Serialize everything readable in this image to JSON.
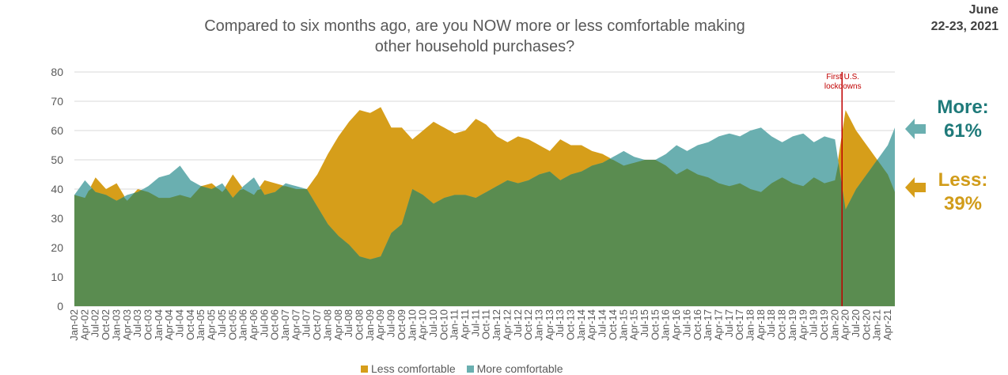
{
  "header": {
    "title_line1": "Compared to six months ago, are you NOW more or less comfortable making",
    "title_line2": "other household purchases?",
    "date_line1": "June",
    "date_line2": "22-23, 2021"
  },
  "callouts": {
    "more_label": "More:",
    "more_value": "61%",
    "less_label": "Less:",
    "less_value": "39%"
  },
  "colors": {
    "less": "#d69e1a",
    "more": "#6aafb0",
    "base": "#5a8c50",
    "event_line": "#c00000",
    "more_text": "#1f7a7a",
    "less_text": "#d19c1a"
  },
  "chart_data": {
    "type": "area",
    "title": "Compared to six months ago, are you NOW more or less comfortable making other household purchases?",
    "ylim": [
      0,
      80
    ],
    "yticks": [
      0,
      10,
      20,
      30,
      40,
      50,
      60,
      70,
      80
    ],
    "grid": true,
    "legend_position": "bottom",
    "x_tick_labels": [
      "Jan-02",
      "Apr-02",
      "Jul-02",
      "Oct-02",
      "Jan-03",
      "Apr-03",
      "Jul-03",
      "Oct-03",
      "Jan-04",
      "Apr-04",
      "Jul-04",
      "Oct-04",
      "Jan-05",
      "Apr-05",
      "Jul-05",
      "Oct-05",
      "Jan-06",
      "Apr-06",
      "Jul-06",
      "Oct-06",
      "Jan-07",
      "Apr-07",
      "Jul-07",
      "Oct-07",
      "Jan-08",
      "Apr-08",
      "Jul-08",
      "Oct-08",
      "Jan-09",
      "Apr-09",
      "Jul-09",
      "Oct-09",
      "Jan-10",
      "Apr-10",
      "Jul-10",
      "Oct-10",
      "Jan-11",
      "Apr-11",
      "Jul-11",
      "Oct-11",
      "Jan-12",
      "Apr-12",
      "Jul-12",
      "Oct-12",
      "Jan-13",
      "Apr-13",
      "Jul-13",
      "Oct-13",
      "Jan-14",
      "Apr-14",
      "Jul-14",
      "Oct-14",
      "Jan-15",
      "Apr-15",
      "Jul-15",
      "Oct-15",
      "Jan-16",
      "Apr-16",
      "Jul-16",
      "Oct-16",
      "Jan-17",
      "Apr-17",
      "Jul-17",
      "Oct-17",
      "Jan-18",
      "Apr-18",
      "Jul-18",
      "Oct-18",
      "Jan-19",
      "Apr-19",
      "Jul-19",
      "Oct-19",
      "Jan-20",
      "Apr-20",
      "Jul-20",
      "Oct-20",
      "Jan-21",
      "Apr-21"
    ],
    "x_range": [
      "2002-01",
      "2021-06"
    ],
    "annotation": {
      "text_line1": "First U.S.",
      "text_line2": "lockdowns",
      "x": "2020-03"
    },
    "series": [
      {
        "name": "Less comfortable",
        "points": [
          [
            "2002-01",
            38
          ],
          [
            "2002-04",
            37
          ],
          [
            "2002-07",
            44
          ],
          [
            "2002-10",
            40
          ],
          [
            "2003-01",
            42
          ],
          [
            "2003-04",
            36
          ],
          [
            "2003-07",
            40
          ],
          [
            "2003-10",
            39
          ],
          [
            "2004-01",
            37
          ],
          [
            "2004-04",
            37
          ],
          [
            "2004-07",
            38
          ],
          [
            "2004-10",
            37
          ],
          [
            "2005-01",
            41
          ],
          [
            "2005-04",
            42
          ],
          [
            "2005-07",
            39
          ],
          [
            "2005-10",
            45
          ],
          [
            "2006-01",
            40
          ],
          [
            "2006-04",
            38
          ],
          [
            "2006-07",
            43
          ],
          [
            "2006-10",
            42
          ],
          [
            "2007-01",
            41
          ],
          [
            "2007-04",
            40
          ],
          [
            "2007-07",
            40
          ],
          [
            "2007-10",
            45
          ],
          [
            "2008-01",
            52
          ],
          [
            "2008-04",
            58
          ],
          [
            "2008-07",
            63
          ],
          [
            "2008-10",
            67
          ],
          [
            "2009-01",
            66
          ],
          [
            "2009-04",
            68
          ],
          [
            "2009-07",
            61
          ],
          [
            "2009-10",
            61
          ],
          [
            "2010-01",
            57
          ],
          [
            "2010-04",
            60
          ],
          [
            "2010-07",
            63
          ],
          [
            "2010-10",
            61
          ],
          [
            "2011-01",
            59
          ],
          [
            "2011-04",
            60
          ],
          [
            "2011-07",
            64
          ],
          [
            "2011-10",
            62
          ],
          [
            "2012-01",
            58
          ],
          [
            "2012-04",
            56
          ],
          [
            "2012-07",
            58
          ],
          [
            "2012-10",
            57
          ],
          [
            "2013-01",
            55
          ],
          [
            "2013-04",
            53
          ],
          [
            "2013-07",
            57
          ],
          [
            "2013-10",
            55
          ],
          [
            "2014-01",
            55
          ],
          [
            "2014-04",
            53
          ],
          [
            "2014-07",
            52
          ],
          [
            "2014-10",
            50
          ],
          [
            "2015-01",
            48
          ],
          [
            "2015-04",
            49
          ],
          [
            "2015-07",
            50
          ],
          [
            "2015-10",
            50
          ],
          [
            "2016-01",
            48
          ],
          [
            "2016-04",
            45
          ],
          [
            "2016-07",
            47
          ],
          [
            "2016-10",
            45
          ],
          [
            "2017-01",
            44
          ],
          [
            "2017-04",
            42
          ],
          [
            "2017-07",
            41
          ],
          [
            "2017-10",
            42
          ],
          [
            "2018-01",
            40
          ],
          [
            "2018-04",
            39
          ],
          [
            "2018-07",
            42
          ],
          [
            "2018-10",
            44
          ],
          [
            "2019-01",
            42
          ],
          [
            "2019-04",
            41
          ],
          [
            "2019-07",
            44
          ],
          [
            "2019-10",
            42
          ],
          [
            "2020-01",
            43
          ],
          [
            "2020-04",
            67
          ],
          [
            "2020-07",
            60
          ],
          [
            "2020-10",
            55
          ],
          [
            "2021-01",
            50
          ],
          [
            "2021-04",
            45
          ],
          [
            "2021-06",
            39
          ]
        ]
      },
      {
        "name": "More comfortable",
        "points": [
          [
            "2002-01",
            38
          ],
          [
            "2002-04",
            43
          ],
          [
            "2002-07",
            39
          ],
          [
            "2002-10",
            38
          ],
          [
            "2003-01",
            36
          ],
          [
            "2003-04",
            38
          ],
          [
            "2003-07",
            39
          ],
          [
            "2003-10",
            41
          ],
          [
            "2004-01",
            44
          ],
          [
            "2004-04",
            45
          ],
          [
            "2004-07",
            48
          ],
          [
            "2004-10",
            43
          ],
          [
            "2005-01",
            41
          ],
          [
            "2005-04",
            40
          ],
          [
            "2005-07",
            42
          ],
          [
            "2005-10",
            37
          ],
          [
            "2006-01",
            41
          ],
          [
            "2006-04",
            44
          ],
          [
            "2006-07",
            38
          ],
          [
            "2006-10",
            39
          ],
          [
            "2007-01",
            42
          ],
          [
            "2007-04",
            41
          ],
          [
            "2007-07",
            40
          ],
          [
            "2007-10",
            34
          ],
          [
            "2008-01",
            28
          ],
          [
            "2008-04",
            24
          ],
          [
            "2008-07",
            21
          ],
          [
            "2008-10",
            17
          ],
          [
            "2009-01",
            16
          ],
          [
            "2009-04",
            17
          ],
          [
            "2009-07",
            25
          ],
          [
            "2009-10",
            28
          ],
          [
            "2010-01",
            40
          ],
          [
            "2010-04",
            38
          ],
          [
            "2010-07",
            35
          ],
          [
            "2010-10",
            37
          ],
          [
            "2011-01",
            38
          ],
          [
            "2011-04",
            38
          ],
          [
            "2011-07",
            37
          ],
          [
            "2011-10",
            39
          ],
          [
            "2012-01",
            41
          ],
          [
            "2012-04",
            43
          ],
          [
            "2012-07",
            42
          ],
          [
            "2012-10",
            43
          ],
          [
            "2013-01",
            45
          ],
          [
            "2013-04",
            46
          ],
          [
            "2013-07",
            43
          ],
          [
            "2013-10",
            45
          ],
          [
            "2014-01",
            46
          ],
          [
            "2014-04",
            48
          ],
          [
            "2014-07",
            49
          ],
          [
            "2014-10",
            51
          ],
          [
            "2015-01",
            53
          ],
          [
            "2015-04",
            51
          ],
          [
            "2015-07",
            50
          ],
          [
            "2015-10",
            50
          ],
          [
            "2016-01",
            52
          ],
          [
            "2016-04",
            55
          ],
          [
            "2016-07",
            53
          ],
          [
            "2016-10",
            55
          ],
          [
            "2017-01",
            56
          ],
          [
            "2017-04",
            58
          ],
          [
            "2017-07",
            59
          ],
          [
            "2017-10",
            58
          ],
          [
            "2018-01",
            60
          ],
          [
            "2018-04",
            61
          ],
          [
            "2018-07",
            58
          ],
          [
            "2018-10",
            56
          ],
          [
            "2019-01",
            58
          ],
          [
            "2019-04",
            59
          ],
          [
            "2019-07",
            56
          ],
          [
            "2019-10",
            58
          ],
          [
            "2020-01",
            57
          ],
          [
            "2020-04",
            33
          ],
          [
            "2020-07",
            40
          ],
          [
            "2020-10",
            45
          ],
          [
            "2021-01",
            50
          ],
          [
            "2021-04",
            55
          ],
          [
            "2021-06",
            61
          ]
        ]
      }
    ]
  },
  "legend": {
    "less_label": "Less comfortable",
    "more_label": "More comfortable"
  }
}
